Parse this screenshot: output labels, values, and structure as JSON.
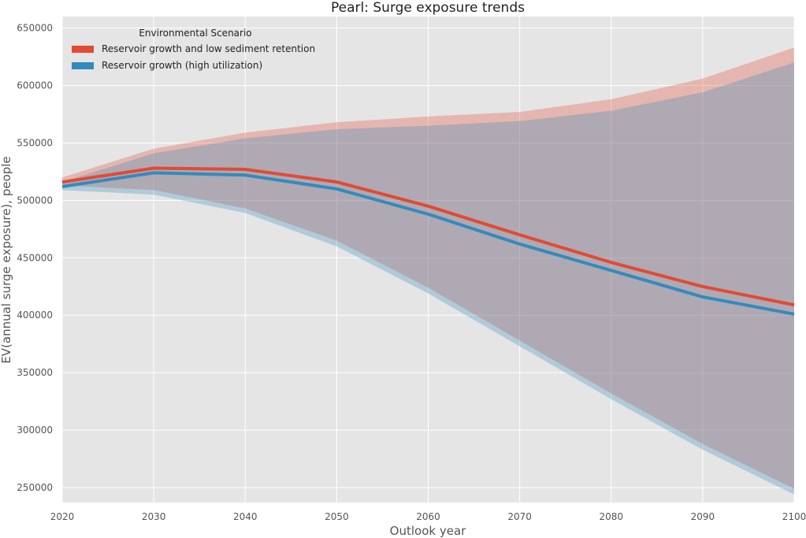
{
  "chart_data": {
    "type": "line",
    "title": "Pearl: Surge exposure trends",
    "xlabel": "Outlook year",
    "ylabel": "EV(annual surge exposure), people",
    "x": [
      2020,
      2030,
      2040,
      2050,
      2060,
      2070,
      2080,
      2090,
      2100
    ],
    "xlim": [
      2020,
      2100
    ],
    "ylim": [
      237000,
      660000
    ],
    "xticks": [
      "2020",
      "2030",
      "2040",
      "2050",
      "2060",
      "2070",
      "2080",
      "2090",
      "2100"
    ],
    "yticks": [
      "250000",
      "300000",
      "350000",
      "400000",
      "450000",
      "500000",
      "550000",
      "600000",
      "650000"
    ],
    "ytick_values": [
      250000,
      300000,
      350000,
      400000,
      450000,
      500000,
      550000,
      600000,
      650000
    ],
    "grid": true,
    "legend": {
      "title": "Environmental Scenario",
      "placement": "top-left"
    },
    "series": [
      {
        "name": "Reservoir growth and low sediment retention",
        "color": "#E24A33",
        "values": [
          516000,
          528000,
          527000,
          516000,
          495000,
          470000,
          446000,
          425000,
          409000
        ],
        "upper": [
          520000,
          545000,
          559000,
          568000,
          573000,
          577000,
          588000,
          606000,
          633000
        ],
        "lower": [
          513000,
          509000,
          493000,
          465000,
          424000,
          378000,
          332000,
          288000,
          249000
        ]
      },
      {
        "name": "Reservoir growth (high utilization)",
        "color": "#348ABD",
        "values": [
          512000,
          524000,
          522000,
          510000,
          488000,
          462000,
          439000,
          416000,
          401000
        ],
        "upper": [
          516000,
          541000,
          554000,
          562000,
          565000,
          569000,
          578000,
          594000,
          620000
        ],
        "lower": [
          509000,
          505000,
          489000,
          460000,
          419000,
          373000,
          327000,
          283000,
          244000
        ]
      }
    ]
  }
}
